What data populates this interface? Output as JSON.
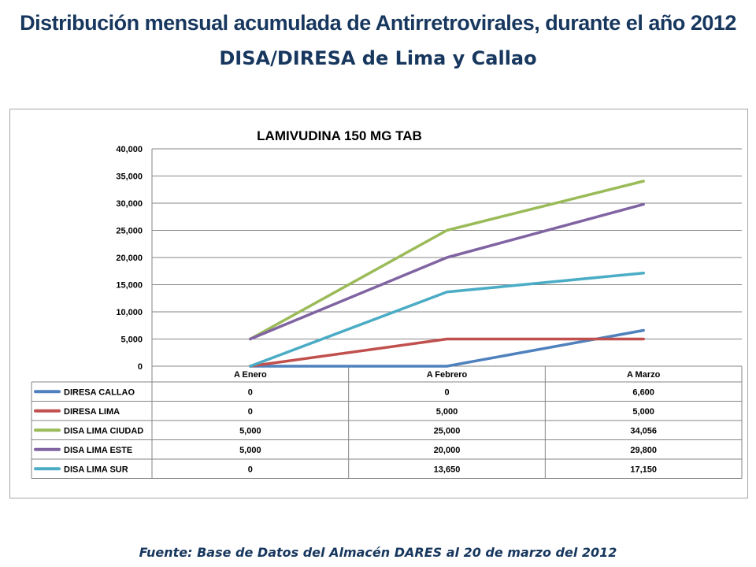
{
  "page": {
    "title": "Distribución mensual acumulada de Antirretrovirales, durante el año 2012",
    "subtitle": "DISA/DIRESA de Lima y Callao",
    "source": "Fuente: Base de Datos del Almacén DARES al 20 de marzo del 2012"
  },
  "chart_data": {
    "type": "line",
    "title": "LAMIVUDINA 150 MG TAB",
    "xlabel": "",
    "ylabel": "",
    "categories": [
      "A Enero",
      "A Febrero",
      "A Marzo"
    ],
    "ylim": [
      0,
      40000
    ],
    "yticks": [
      "0",
      "5,000",
      "10,000",
      "15,000",
      "20,000",
      "25,000",
      "30,000",
      "35,000",
      "40,000"
    ],
    "grid": true,
    "legend": "data-table",
    "series": [
      {
        "name": "DIRESA CALLAO",
        "color": "#4f81bd",
        "values": [
          0,
          0,
          6600
        ],
        "labels": [
          "0",
          "0",
          "6,600"
        ]
      },
      {
        "name": "DIRESA LIMA",
        "color": "#c0504d",
        "values": [
          0,
          5000,
          5000
        ],
        "labels": [
          "0",
          "5,000",
          "5,000"
        ]
      },
      {
        "name": "DISA LIMA CIUDAD",
        "color": "#9bbb59",
        "values": [
          5000,
          25000,
          34056
        ],
        "labels": [
          "5,000",
          "25,000",
          "34,056"
        ]
      },
      {
        "name": "DISA LIMA ESTE",
        "color": "#8064a2",
        "values": [
          5000,
          20000,
          29800
        ],
        "labels": [
          "5,000",
          "20,000",
          "29,800"
        ]
      },
      {
        "name": "DISA LIMA SUR",
        "color": "#4bacc6",
        "values": [
          0,
          13650,
          17150
        ],
        "labels": [
          "0",
          "13,650",
          "17,150"
        ]
      }
    ]
  }
}
